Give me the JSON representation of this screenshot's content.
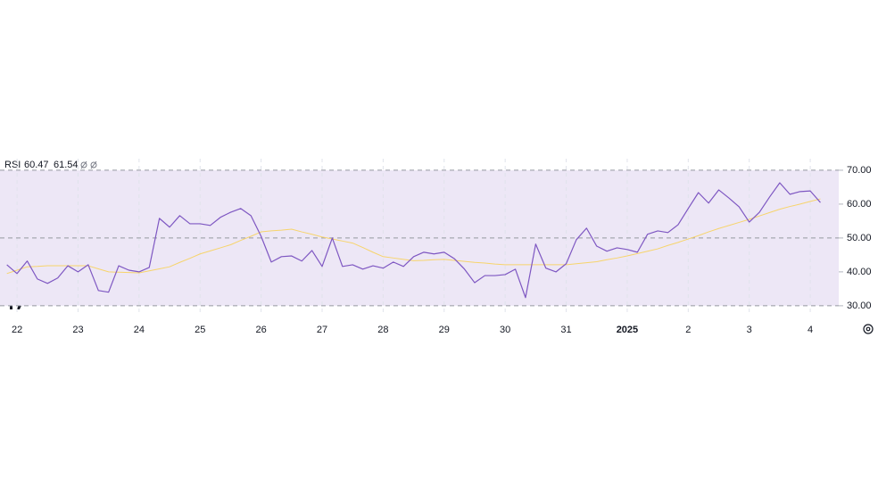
{
  "chart_data": {
    "type": "line",
    "x": [
      -4,
      0,
      4,
      8,
      12,
      16,
      20,
      24,
      28,
      32,
      36,
      40,
      44,
      48,
      52,
      56,
      60,
      64,
      68,
      72,
      76,
      80,
      84,
      88,
      92,
      96,
      100,
      104,
      108,
      112,
      116,
      120,
      124,
      128,
      132,
      136,
      140,
      144,
      148,
      152,
      156,
      160,
      164,
      168,
      172,
      176,
      180,
      184,
      188,
      192,
      196,
      200,
      204,
      208,
      212,
      216,
      220,
      224,
      228,
      232,
      236,
      240,
      244,
      248,
      252,
      256,
      260,
      264,
      268,
      272,
      276,
      280,
      284,
      288,
      292,
      296,
      300,
      304,
      308,
      312,
      316
    ],
    "series": [
      {
        "name": "RSI",
        "color": "#7e57c2",
        "values": [
          42.1,
          39.5,
          43.2,
          37.9,
          36.6,
          38.2,
          41.8,
          40.0,
          42.1,
          34.5,
          34.0,
          41.8,
          40.5,
          40.0,
          41.3,
          55.8,
          53.2,
          56.6,
          54.2,
          54.2,
          53.7,
          56.1,
          57.6,
          58.7,
          56.6,
          50.5,
          42.9,
          44.5,
          44.7,
          43.2,
          46.3,
          41.6,
          50.0,
          41.6,
          42.1,
          40.8,
          41.8,
          41.1,
          42.9,
          41.6,
          44.5,
          45.8,
          45.3,
          45.8,
          43.9,
          40.8,
          36.8,
          38.9,
          38.9,
          39.2,
          40.8,
          32.4,
          48.2,
          41.1,
          40.0,
          42.4,
          49.5,
          52.9,
          47.6,
          46.1,
          47.1,
          46.6,
          45.8,
          51.1,
          52.1,
          51.6,
          53.9,
          58.7,
          63.4,
          60.3,
          64.2,
          61.8,
          59.2,
          54.7,
          57.6,
          62.1,
          66.3,
          62.9,
          63.7,
          63.9,
          60.47
        ]
      },
      {
        "color": "#f7d46b",
        "values": [
          39.5,
          40.5,
          41.5,
          41.6,
          41.8,
          41.8,
          41.8,
          41.8,
          41.8,
          40.9,
          40.0,
          39.9,
          39.8,
          39.7,
          40.3,
          40.9,
          41.5,
          42.8,
          44.0,
          45.3,
          46.2,
          47.1,
          48.0,
          49.3,
          50.5,
          51.8,
          52.1,
          52.3,
          52.6,
          51.8,
          51.1,
          50.3,
          49.7,
          49.1,
          48.5,
          47.2,
          45.8,
          44.5,
          44.1,
          43.7,
          43.3,
          43.4,
          43.6,
          43.7,
          43.4,
          43.1,
          42.8,
          42.6,
          42.3,
          42.1,
          42.1,
          42.1,
          42.1,
          42.1,
          42.1,
          42.1,
          42.4,
          42.7,
          43.0,
          43.6,
          44.1,
          44.7,
          45.4,
          46.1,
          46.8,
          47.8,
          48.7,
          49.7,
          50.7,
          51.8,
          52.8,
          53.7,
          54.6,
          55.5,
          56.5,
          57.5,
          58.5,
          59.3,
          60.0,
          60.8,
          61.54
        ]
      }
    ],
    "xlim": [
      -6.7,
      323.2
    ],
    "xticks": [
      {
        "value": 0,
        "label": "22"
      },
      {
        "value": 24,
        "label": "23"
      },
      {
        "value": 48,
        "label": "24"
      },
      {
        "value": 72,
        "label": "25"
      },
      {
        "value": 96,
        "label": "26"
      },
      {
        "value": 120,
        "label": "27"
      },
      {
        "value": 144,
        "label": "28"
      },
      {
        "value": 168,
        "label": "29"
      },
      {
        "value": 192,
        "label": "30"
      },
      {
        "value": 216,
        "label": "31"
      },
      {
        "value": 240,
        "label": "2025"
      },
      {
        "value": 264,
        "label": "2"
      },
      {
        "value": 288,
        "label": "3"
      },
      {
        "value": 312,
        "label": "4"
      }
    ],
    "ylim": [
      27.6,
      73.4
    ],
    "yticks": [
      {
        "value": 30,
        "label": "30.00"
      },
      {
        "value": 40,
        "label": "40.00"
      },
      {
        "value": 50,
        "label": "50.00"
      },
      {
        "value": 60,
        "label": "60.00"
      },
      {
        "value": 70,
        "label": "70.00"
      }
    ],
    "band_lines": {
      "upper": 70,
      "middle": 50,
      "lower": 30
    },
    "band_color": "#ede7f6",
    "xgrid": true
  }
}
